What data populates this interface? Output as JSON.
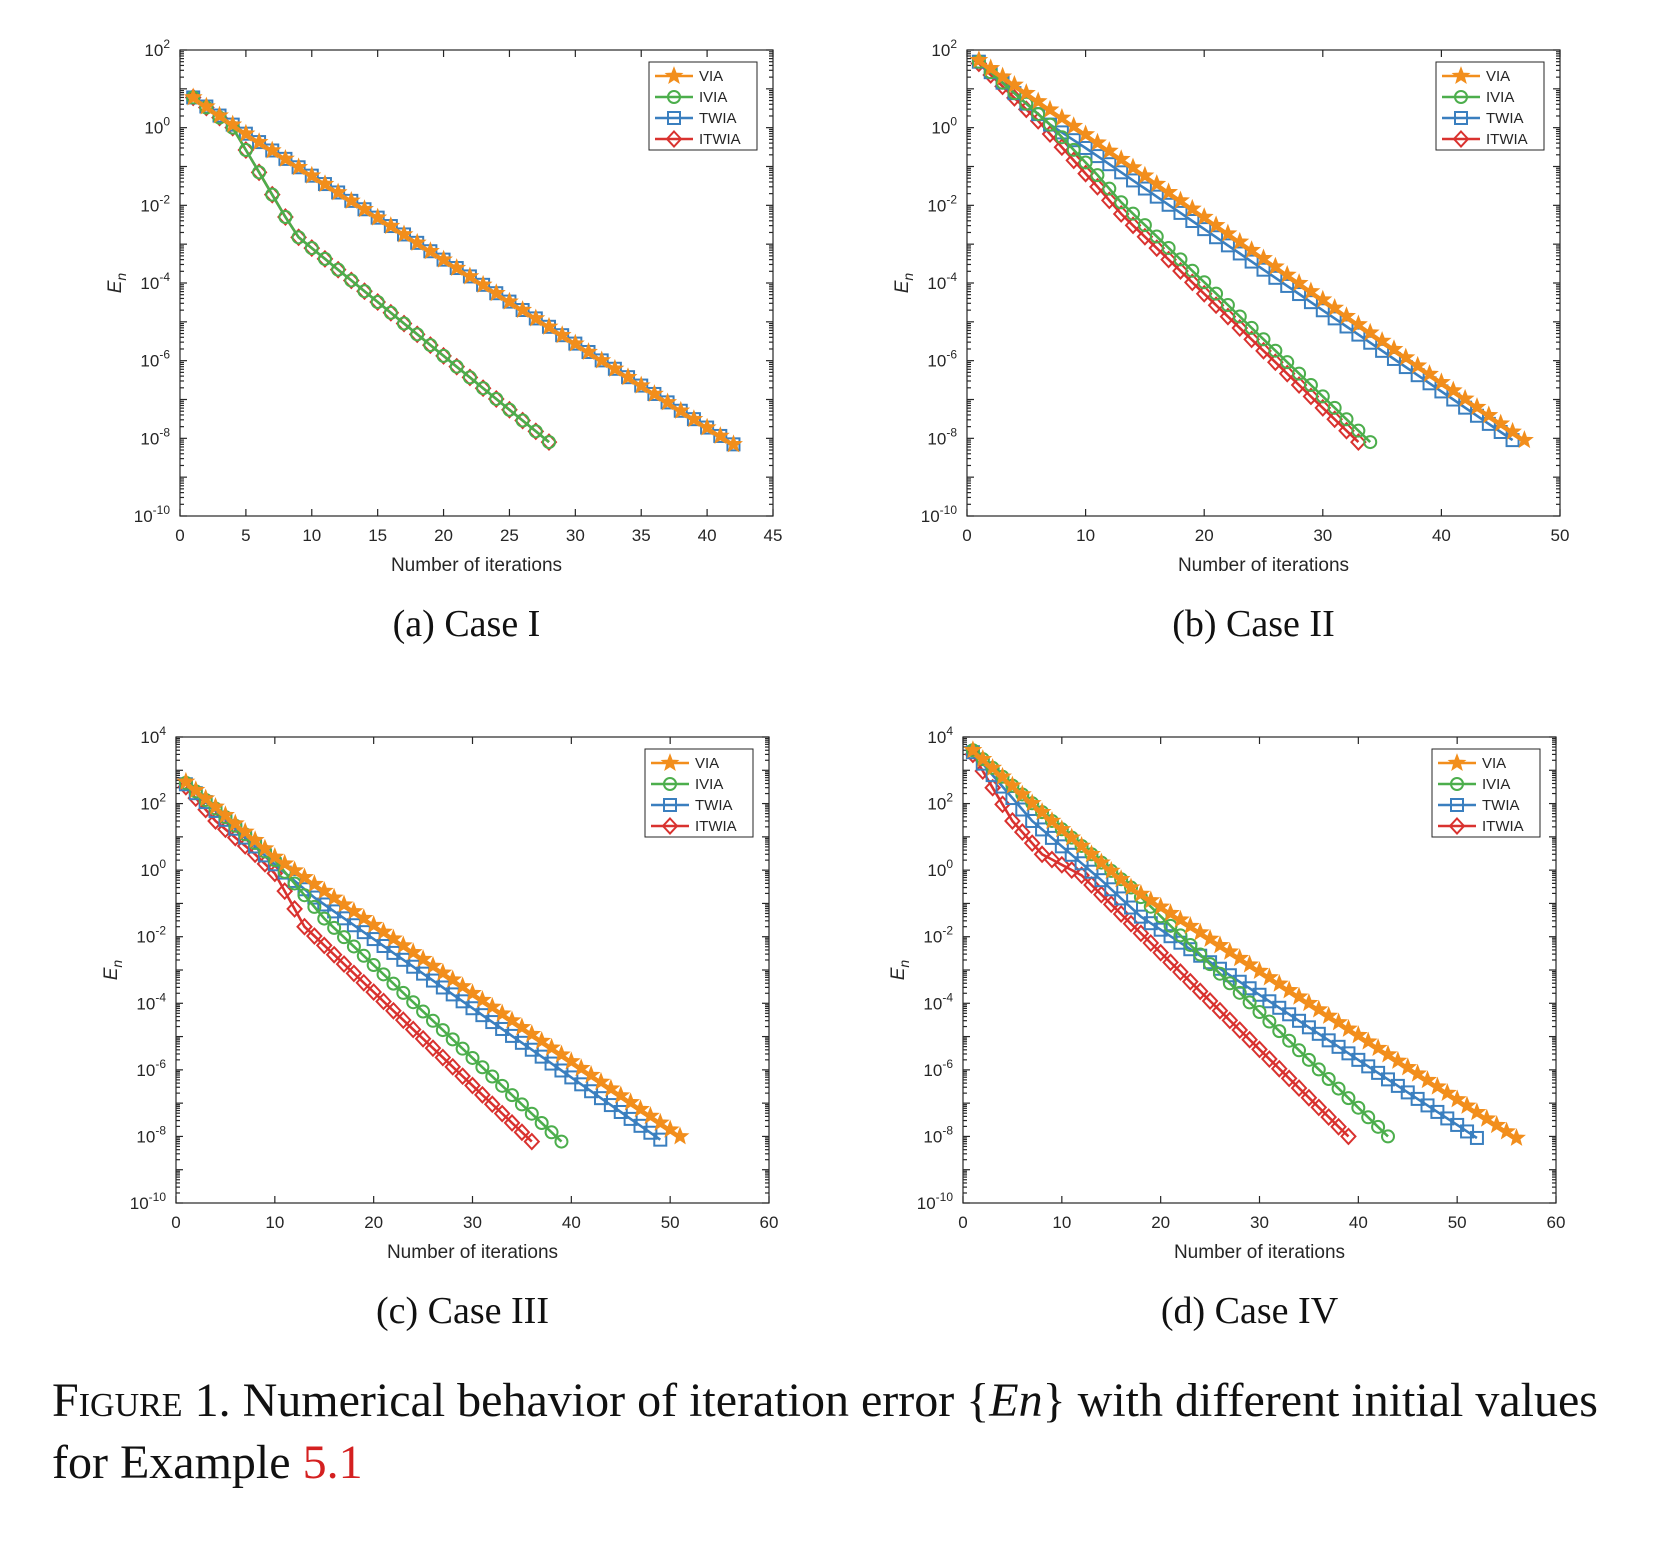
{
  "legend_labels": [
    "VIA",
    "IVIA",
    "TWIA",
    "ITWIA"
  ],
  "colors": {
    "VIA": "#f28e1c",
    "IVIA": "#4cae4c",
    "TWIA": "#3a7fbf",
    "ITWIA": "#d9322f"
  },
  "markers": {
    "VIA": "star",
    "IVIA": "circle",
    "TWIA": "square",
    "ITWIA": "diamond"
  },
  "caption": {
    "prefix": "Figure 1.",
    "text": "Numerical behavior of iteration error {",
    "symbol": "En",
    "text2": "} with different initial values for Example ",
    "ref": "5.1"
  },
  "chart_data": [
    {
      "type": "line",
      "subcaption": "(a)  Case I",
      "xlabel": "Number of iterations",
      "ylabel": "En",
      "y_scale": "log",
      "xlim": [
        0,
        45
      ],
      "ylim": [
        1e-10,
        100
      ],
      "xticks": [
        "0",
        "5",
        "10",
        "15",
        "20",
        "25",
        "30",
        "35",
        "40",
        "45"
      ],
      "yticks": [
        "10^2",
        "10^0",
        "10^-2",
        "10^-4",
        "10^-6",
        "10^-8",
        "10^-10"
      ],
      "legend_position": "top-right",
      "series": [
        {
          "name": "VIA",
          "x_end": 42,
          "anchors": [
            [
              1,
              6
            ],
            [
              5,
              0.7
            ],
            [
              42,
              7e-09
            ]
          ]
        },
        {
          "name": "IVIA",
          "x_end": 28,
          "anchors": [
            [
              1,
              6
            ],
            [
              4,
              1
            ],
            [
              8,
              0.005
            ],
            [
              9,
              0.0015
            ],
            [
              28,
              8e-09
            ]
          ]
        },
        {
          "name": "TWIA",
          "x_end": 42,
          "anchors": [
            [
              1,
              6
            ],
            [
              5,
              0.7
            ],
            [
              42,
              7e-09
            ]
          ]
        },
        {
          "name": "ITWIA",
          "x_end": 28,
          "anchors": [
            [
              1,
              6
            ],
            [
              4,
              1
            ],
            [
              8,
              0.005
            ],
            [
              9,
              0.0015
            ],
            [
              28,
              8e-09
            ]
          ]
        }
      ]
    },
    {
      "type": "line",
      "subcaption": "(b)  Case II",
      "xlabel": "Number of iterations",
      "ylabel": "En",
      "y_scale": "log",
      "xlim": [
        0,
        50
      ],
      "ylim": [
        1e-10,
        100
      ],
      "xticks": [
        "0",
        "10",
        "20",
        "30",
        "40",
        "50"
      ],
      "yticks": [
        "10^2",
        "10^0",
        "10^-2",
        "10^-4",
        "10^-6",
        "10^-8",
        "10^-10"
      ],
      "legend_position": "top-right",
      "series": [
        {
          "name": "VIA",
          "x_end": 47,
          "anchors": [
            [
              1,
              55
            ],
            [
              47,
              9e-09
            ]
          ]
        },
        {
          "name": "IVIA",
          "x_end": 34,
          "anchors": [
            [
              1,
              50
            ],
            [
              7,
              1.2
            ],
            [
              11,
              0.06
            ],
            [
              13,
              0.012
            ],
            [
              34,
              8e-09
            ]
          ]
        },
        {
          "name": "TWIA",
          "x_end": 46,
          "anchors": [
            [
              1,
              50
            ],
            [
              7,
              1.2
            ],
            [
              10,
              0.3
            ],
            [
              46,
              9e-09
            ]
          ]
        },
        {
          "name": "ITWIA",
          "x_end": 33,
          "anchors": [
            [
              1,
              45
            ],
            [
              6,
              1.5
            ],
            [
              11,
              0.03
            ],
            [
              13,
              0.006
            ],
            [
              33,
              8e-09
            ]
          ]
        }
      ]
    },
    {
      "type": "line",
      "subcaption": "(c)  Case III",
      "xlabel": "Number of iterations",
      "ylabel": "En",
      "y_scale": "log",
      "xlim": [
        0,
        60
      ],
      "ylim": [
        1e-10,
        10000
      ],
      "xticks": [
        "0",
        "10",
        "20",
        "30",
        "40",
        "50",
        "60"
      ],
      "yticks": [
        "10^4",
        "10^2",
        "10^0",
        "10^-2",
        "10^-4",
        "10^-6",
        "10^-8",
        "10^-10"
      ],
      "legend_position": "top-right",
      "series": [
        {
          "name": "VIA",
          "x_end": 51,
          "anchors": [
            [
              1,
              450
            ],
            [
              10,
              2.5
            ],
            [
              51,
              1e-08
            ]
          ]
        },
        {
          "name": "IVIA",
          "x_end": 39,
          "anchors": [
            [
              1,
              420
            ],
            [
              10,
              2
            ],
            [
              15,
              0.035
            ],
            [
              39,
              7e-09
            ]
          ]
        },
        {
          "name": "TWIA",
          "x_end": 49,
          "anchors": [
            [
              1,
              380
            ],
            [
              10,
              1.5
            ],
            [
              14,
              0.15
            ],
            [
              49,
              8e-09
            ]
          ]
        },
        {
          "name": "ITWIA",
          "x_end": 36,
          "anchors": [
            [
              1,
              320
            ],
            [
              4,
              30
            ],
            [
              8,
              3
            ],
            [
              10,
              0.8
            ],
            [
              13,
              0.02
            ],
            [
              36,
              7e-09
            ]
          ]
        }
      ]
    },
    {
      "type": "line",
      "subcaption": "(d)  Case IV",
      "xlabel": "Number of iterations",
      "ylabel": "En",
      "y_scale": "log",
      "xlim": [
        0,
        60
      ],
      "ylim": [
        1e-10,
        10000
      ],
      "xticks": [
        "0",
        "10",
        "20",
        "30",
        "40",
        "50",
        "60"
      ],
      "yticks": [
        "10^4",
        "10^2",
        "10^0",
        "10^-2",
        "10^-4",
        "10^-6",
        "10^-8",
        "10^-10"
      ],
      "legend_position": "top-right",
      "series": [
        {
          "name": "VIA",
          "x_end": 56,
          "anchors": [
            [
              1,
              4000
            ],
            [
              9,
              30
            ],
            [
              17,
              0.3
            ],
            [
              56,
              9e-09
            ]
          ]
        },
        {
          "name": "IVIA",
          "x_end": 43,
          "anchors": [
            [
              1,
              4000
            ],
            [
              9,
              30
            ],
            [
              17,
              0.3
            ],
            [
              43,
              1e-08
            ]
          ]
        },
        {
          "name": "TWIA",
          "x_end": 52,
          "anchors": [
            [
              1,
              3500
            ],
            [
              7,
              30
            ],
            [
              14,
              0.5
            ],
            [
              18,
              0.04
            ],
            [
              52,
              9e-09
            ]
          ]
        },
        {
          "name": "ITWIA",
          "x_end": 39,
          "anchors": [
            [
              1,
              3000
            ],
            [
              5,
              30
            ],
            [
              8,
              3
            ],
            [
              12,
              0.7
            ],
            [
              39,
              1e-08
            ]
          ]
        }
      ]
    }
  ]
}
